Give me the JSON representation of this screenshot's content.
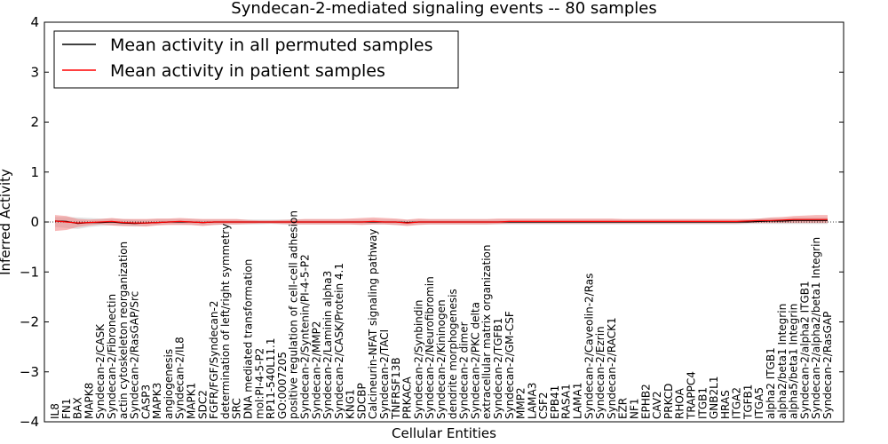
{
  "chart_data": {
    "type": "line",
    "title": "Syndecan-2-mediated signaling events -- 80 samples",
    "xlabel": "Cellular Entities",
    "ylabel": "Inferred Activity",
    "ylim": [
      -4,
      4
    ],
    "yticks": [
      -4,
      -3,
      -2,
      -1,
      0,
      1,
      2,
      3,
      4
    ],
    "ytick_labels": [
      "−4",
      "−3",
      "−2",
      "−1",
      "0",
      "1",
      "2",
      "3",
      "4"
    ],
    "grid": false,
    "legend_position": "top-left",
    "categories": [
      "IL8",
      "FN1",
      "BAX",
      "MAPK8",
      "Syndecan-2/CASK",
      "Syndecan-2/Fibronectin",
      "actin cytoskeleton reorganization",
      "Syndecan-2/RasGAP/Src",
      "CASP3",
      "MAPK3",
      "angiogenesis",
      "Syndecan-2/IL8",
      "MAPK1",
      "SDC2",
      "FGFR/FGF/Syndecan-2",
      "determination of left/right symmetry",
      "SRC",
      "DNA mediated transformation",
      "mol:PI-4-5-P2",
      "RP11-540L11.1",
      "GO:0007205",
      "positive regulation of cell-cell adhesion",
      "Syndecan-2/Syntenin/PI-4-5-P2",
      "Syndecan-2/MMP2",
      "Syndecan-2/Laminin alpha3",
      "Syndecan-2/CASK/Protein 4.1",
      "KNG1",
      "SDCBP",
      "Calcineurin-NFAT signaling pathway",
      "Syndecan-2/TACI",
      "TNFRSF13B",
      "PRKACA",
      "Syndecan-2/Synbindin",
      "Syndecan-2/Neurofibromin",
      "Syndecan-2/Kininogen",
      "dendrite morphogenesis",
      "Syndecan-2 dimer",
      "Syndecan-2/PKC delta",
      "extracellular matrix organization",
      "Syndecan-2/TGFB1",
      "Syndecan-2/GM-CSF",
      "MMP2",
      "LAMA3",
      "CSF2",
      "EPB41",
      "RASA1",
      "LAMA1",
      "Syndecan-2/Caveolin-2/Ras",
      "Syndecan-2/Ezrin",
      "Syndecan-2/RACK1",
      "EZR",
      "NF1",
      "EPHB2",
      "CAV2",
      "PRKCD",
      "RHOA",
      "TRAPPC4",
      "ITGB1",
      "GNB2L1",
      "HRAS",
      "ITGA2",
      "TGFB1",
      "ITGA5",
      "alpha2 ITGB1",
      "alpha2/beta1 Integrin",
      "alpha5/beta1 Integrin",
      "Syndecan-2/alpha2 ITGB1",
      "Syndecan-2/alpha2/beta1 Integrin",
      "Syndecan-2/RasGAP"
    ],
    "series": [
      {
        "name": "Mean activity in all permuted samples",
        "color": "#000000",
        "band_color": "#c8c8c8",
        "values": [
          0.02,
          0.01,
          -0.03,
          -0.01,
          -0.01,
          0.0,
          -0.02,
          -0.03,
          -0.02,
          -0.01,
          0.0,
          0.0,
          0.0,
          -0.01,
          0.0,
          0.0,
          0.0,
          0.0,
          0.0,
          0.0,
          0.0,
          0.0,
          0.0,
          0.0,
          0.0,
          0.0,
          0.0,
          0.0,
          0.0,
          0.0,
          0.0,
          -0.01,
          0.0,
          0.0,
          0.0,
          0.0,
          0.0,
          0.0,
          0.0,
          0.0,
          0.0,
          0.0,
          0.0,
          0.0,
          0.0,
          0.0,
          0.0,
          0.0,
          0.0,
          0.0,
          0.0,
          0.0,
          0.0,
          0.0,
          0.0,
          0.0,
          0.0,
          0.0,
          0.0,
          0.0,
          0.0,
          0.0,
          0.01,
          0.02,
          0.02,
          0.03,
          0.03,
          0.03,
          0.03
        ],
        "lower": [
          -0.1,
          -0.12,
          -0.14,
          -0.1,
          -0.08,
          -0.07,
          -0.08,
          -0.09,
          -0.08,
          -0.06,
          -0.05,
          -0.05,
          -0.06,
          -0.07,
          -0.06,
          -0.05,
          -0.05,
          -0.05,
          -0.05,
          -0.04,
          -0.05,
          -0.05,
          -0.05,
          -0.05,
          -0.05,
          -0.05,
          -0.05,
          -0.05,
          -0.05,
          -0.05,
          -0.06,
          -0.07,
          -0.05,
          -0.05,
          -0.05,
          -0.05,
          -0.05,
          -0.05,
          -0.05,
          -0.05,
          -0.05,
          -0.05,
          -0.05,
          -0.05,
          -0.05,
          -0.05,
          -0.05,
          -0.05,
          -0.05,
          -0.05,
          -0.05,
          -0.05,
          -0.05,
          -0.05,
          -0.05,
          -0.05,
          -0.05,
          -0.05,
          -0.05,
          -0.05,
          -0.05,
          -0.04,
          -0.04,
          -0.04,
          -0.04,
          -0.04,
          -0.04,
          -0.04,
          -0.04
        ],
        "upper": [
          0.1,
          0.1,
          0.09,
          0.08,
          0.07,
          0.07,
          0.06,
          0.05,
          0.05,
          0.06,
          0.06,
          0.06,
          0.06,
          0.05,
          0.05,
          0.05,
          0.05,
          0.05,
          0.05,
          0.05,
          0.05,
          0.05,
          0.05,
          0.05,
          0.05,
          0.05,
          0.05,
          0.05,
          0.05,
          0.05,
          0.05,
          0.04,
          0.05,
          0.05,
          0.05,
          0.05,
          0.05,
          0.05,
          0.05,
          0.05,
          0.05,
          0.05,
          0.05,
          0.05,
          0.05,
          0.05,
          0.05,
          0.05,
          0.05,
          0.05,
          0.05,
          0.05,
          0.05,
          0.05,
          0.05,
          0.05,
          0.05,
          0.05,
          0.05,
          0.05,
          0.05,
          0.06,
          0.07,
          0.08,
          0.08,
          0.09,
          0.09,
          0.09,
          0.09
        ]
      },
      {
        "name": "Mean activity in patient samples",
        "color": "#ff0000",
        "band_color": "#f08080",
        "values": [
          0.02,
          0.0,
          -0.02,
          -0.01,
          0.0,
          0.01,
          -0.01,
          -0.02,
          -0.02,
          -0.01,
          0.0,
          0.01,
          0.0,
          -0.01,
          0.0,
          0.0,
          0.0,
          0.0,
          0.0,
          0.0,
          0.0,
          0.0,
          0.0,
          0.0,
          0.0,
          0.0,
          0.0,
          0.0,
          0.01,
          0.0,
          0.0,
          -0.02,
          0.0,
          0.0,
          0.0,
          0.0,
          0.0,
          0.0,
          0.0,
          0.0,
          0.01,
          0.01,
          0.01,
          0.01,
          0.01,
          0.01,
          0.01,
          0.01,
          0.01,
          0.01,
          0.01,
          0.01,
          0.01,
          0.01,
          0.01,
          0.01,
          0.01,
          0.01,
          0.01,
          0.01,
          0.01,
          0.02,
          0.03,
          0.03,
          0.04,
          0.05,
          0.05,
          0.05,
          0.05
        ],
        "lower": [
          -0.18,
          -0.16,
          -0.1,
          -0.07,
          -0.05,
          -0.07,
          -0.08,
          -0.08,
          -0.09,
          -0.07,
          -0.06,
          -0.06,
          -0.06,
          -0.08,
          -0.06,
          -0.05,
          -0.05,
          -0.04,
          -0.03,
          -0.03,
          -0.04,
          -0.05,
          -0.05,
          -0.05,
          -0.05,
          -0.05,
          -0.05,
          -0.06,
          -0.05,
          -0.05,
          -0.06,
          -0.08,
          -0.06,
          -0.05,
          -0.05,
          -0.05,
          -0.05,
          -0.05,
          -0.05,
          -0.04,
          -0.03,
          -0.03,
          -0.03,
          -0.03,
          -0.03,
          -0.03,
          -0.03,
          -0.03,
          -0.03,
          -0.03,
          -0.03,
          -0.03,
          -0.03,
          -0.03,
          -0.03,
          -0.03,
          -0.03,
          -0.03,
          -0.03,
          -0.03,
          -0.03,
          -0.02,
          -0.02,
          -0.02,
          -0.02,
          -0.02,
          -0.02,
          -0.02,
          -0.02
        ],
        "upper": [
          0.14,
          0.12,
          0.06,
          0.05,
          0.06,
          0.08,
          0.06,
          0.06,
          0.06,
          0.07,
          0.07,
          0.08,
          0.07,
          0.06,
          0.06,
          0.06,
          0.06,
          0.04,
          0.03,
          0.03,
          0.04,
          0.05,
          0.06,
          0.06,
          0.06,
          0.06,
          0.07,
          0.08,
          0.09,
          0.08,
          0.07,
          0.05,
          0.07,
          0.06,
          0.06,
          0.06,
          0.06,
          0.06,
          0.06,
          0.07,
          0.07,
          0.07,
          0.07,
          0.07,
          0.07,
          0.07,
          0.07,
          0.07,
          0.07,
          0.07,
          0.06,
          0.06,
          0.06,
          0.06,
          0.06,
          0.06,
          0.06,
          0.06,
          0.06,
          0.06,
          0.06,
          0.06,
          0.07,
          0.09,
          0.1,
          0.12,
          0.13,
          0.14,
          0.14
        ]
      }
    ]
  }
}
